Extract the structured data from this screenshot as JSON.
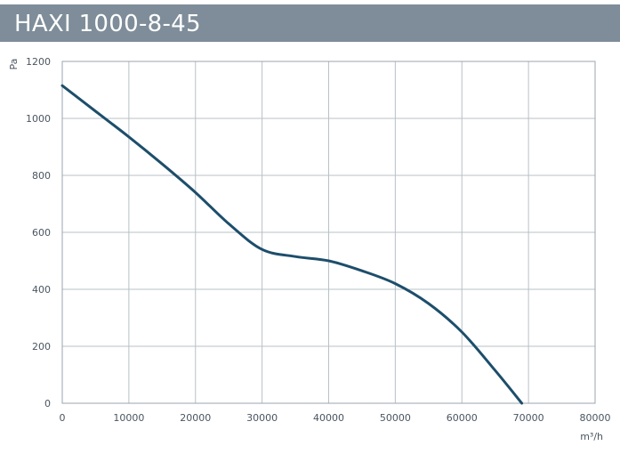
{
  "header": {
    "title": "HAXI 1000-8-45",
    "bar_color": "#7e8d99"
  },
  "chart_data": {
    "type": "line",
    "title": "HAXI 1000-8-45",
    "xlabel": "m³/h",
    "ylabel": "Pa",
    "xlim": [
      0,
      80000
    ],
    "ylim": [
      0,
      1200
    ],
    "x_ticks": [
      0,
      10000,
      20000,
      30000,
      40000,
      50000,
      60000,
      70000,
      80000
    ],
    "y_ticks": [
      0,
      200,
      400,
      600,
      800,
      1000,
      1200
    ],
    "x_tick_labels": [
      "0",
      "10000",
      "20000",
      "30000",
      "40000",
      "50000",
      "60000",
      "70000",
      "80000"
    ],
    "y_tick_labels": [
      "0",
      "200",
      "400",
      "600",
      "800",
      "1000",
      "1200"
    ],
    "grid": true,
    "series": [
      {
        "color": "#1d4e6b",
        "x": [
          0,
          5000,
          10000,
          15000,
          20000,
          25000,
          30000,
          35000,
          40000,
          45000,
          50000,
          55000,
          60000,
          65000,
          69000
        ],
        "y": [
          1115,
          1025,
          935,
          840,
          740,
          630,
          540,
          515,
          500,
          465,
          420,
          350,
          250,
          115,
          0
        ]
      }
    ]
  }
}
